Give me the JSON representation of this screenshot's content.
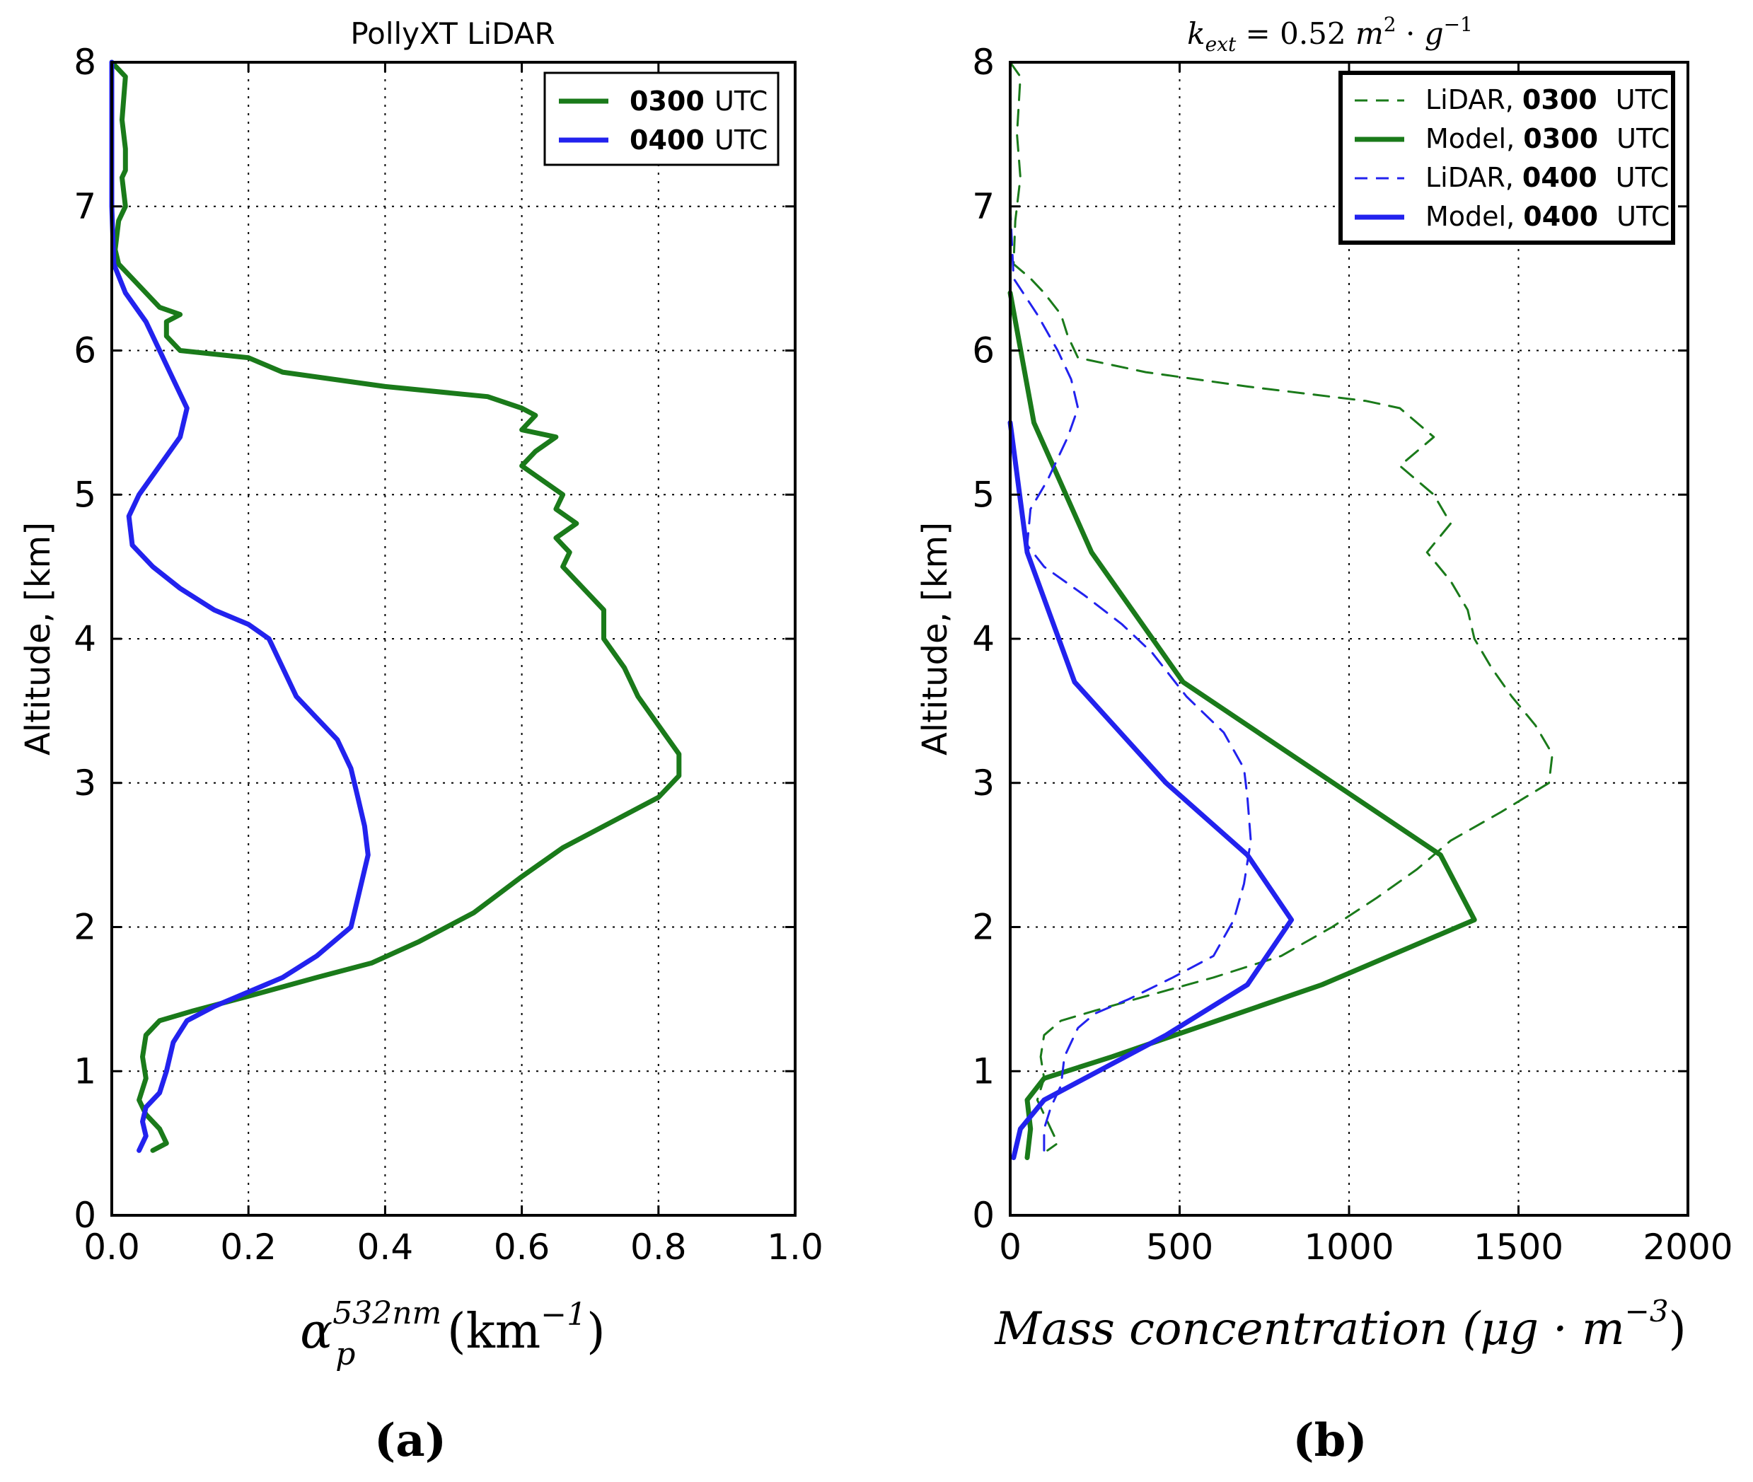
{
  "panels": {
    "a": {
      "title": "PollyXT LiDAR",
      "ylabel": "Altitude, [km]",
      "xlabel_symbol": "α",
      "xlabel_sup": "532nm",
      "xlabel_sub": "p",
      "xlabel_unit": " (km",
      "xlabel_unit_exp": "−1",
      "xlabel_close": ")",
      "caption": "(a)",
      "legend": [
        {
          "time": "0300",
          "unit": "UTC",
          "color": "#1a7a1a"
        },
        {
          "time": "0400",
          "unit": "UTC",
          "color": "#2222ee"
        }
      ]
    },
    "b": {
      "title_k": "k",
      "title_sub": "ext",
      "title_eq": " = 0.52 ",
      "title_m": "m",
      "title_m_exp": "2",
      "title_dot": " · ",
      "title_g": "g",
      "title_g_exp": "−1",
      "ylabel": "Altitude, [km]",
      "xlabel": "Mass concentration (μg · m",
      "xlabel_exp": "−3",
      "xlabel_close": ")",
      "caption": "(b)",
      "legend": [
        {
          "source": "LiDAR,",
          "time": "0300",
          "unit": "UTC",
          "color": "#1a7a1a",
          "style": "dashed"
        },
        {
          "source": "Model,",
          "time": "0300",
          "unit": "UTC",
          "color": "#1a7a1a",
          "style": "solid"
        },
        {
          "source": "LiDAR,",
          "time": "0400",
          "unit": "UTC",
          "color": "#2222ee",
          "style": "dashed"
        },
        {
          "source": "Model,",
          "time": "0400",
          "unit": "UTC",
          "color": "#2222ee",
          "style": "solid"
        }
      ]
    }
  },
  "chart_data": [
    {
      "type": "line",
      "title": "PollyXT LiDAR",
      "xlabel": "α_p^532nm (km^-1)",
      "ylabel": "Altitude, [km]",
      "xlim": [
        0.0,
        1.0
      ],
      "ylim": [
        0,
        8
      ],
      "xticks": [
        "0.0",
        "0.2",
        "0.4",
        "0.6",
        "0.8",
        "1.0"
      ],
      "yticks": [
        "0",
        "1",
        "2",
        "3",
        "4",
        "5",
        "6",
        "7",
        "8"
      ],
      "grid": true,
      "legend_position": "top-right",
      "series": [
        {
          "name": "0300 UTC",
          "color": "#1a7a1a",
          "style": "solid",
          "points": [
            [
              0.0,
              8.0
            ],
            [
              0.02,
              7.9
            ],
            [
              0.015,
              7.6
            ],
            [
              0.02,
              7.4
            ],
            [
              0.02,
              7.25
            ],
            [
              0.015,
              7.2
            ],
            [
              0.02,
              7.0
            ],
            [
              0.01,
              6.9
            ],
            [
              0.005,
              6.7
            ],
            [
              0.01,
              6.6
            ],
            [
              0.03,
              6.5
            ],
            [
              0.05,
              6.4
            ],
            [
              0.07,
              6.3
            ],
            [
              0.1,
              6.25
            ],
            [
              0.08,
              6.2
            ],
            [
              0.08,
              6.1
            ],
            [
              0.1,
              6.0
            ],
            [
              0.2,
              5.95
            ],
            [
              0.25,
              5.85
            ],
            [
              0.4,
              5.75
            ],
            [
              0.55,
              5.68
            ],
            [
              0.6,
              5.6
            ],
            [
              0.62,
              5.55
            ],
            [
              0.6,
              5.45
            ],
            [
              0.65,
              5.4
            ],
            [
              0.62,
              5.3
            ],
            [
              0.6,
              5.2
            ],
            [
              0.63,
              5.1
            ],
            [
              0.66,
              5.0
            ],
            [
              0.65,
              4.9
            ],
            [
              0.68,
              4.8
            ],
            [
              0.65,
              4.7
            ],
            [
              0.67,
              4.6
            ],
            [
              0.66,
              4.5
            ],
            [
              0.68,
              4.4
            ],
            [
              0.7,
              4.3
            ],
            [
              0.72,
              4.2
            ],
            [
              0.72,
              4.0
            ],
            [
              0.75,
              3.8
            ],
            [
              0.77,
              3.6
            ],
            [
              0.8,
              3.4
            ],
            [
              0.83,
              3.2
            ],
            [
              0.83,
              3.05
            ],
            [
              0.8,
              2.9
            ],
            [
              0.74,
              2.75
            ],
            [
              0.66,
              2.55
            ],
            [
              0.6,
              2.35
            ],
            [
              0.53,
              2.1
            ],
            [
              0.45,
              1.9
            ],
            [
              0.38,
              1.75
            ],
            [
              0.3,
              1.65
            ],
            [
              0.2,
              1.52
            ],
            [
              0.12,
              1.42
            ],
            [
              0.07,
              1.35
            ],
            [
              0.05,
              1.25
            ],
            [
              0.045,
              1.1
            ],
            [
              0.05,
              0.95
            ],
            [
              0.04,
              0.8
            ],
            [
              0.05,
              0.7
            ],
            [
              0.07,
              0.6
            ],
            [
              0.08,
              0.5
            ],
            [
              0.06,
              0.45
            ]
          ]
        },
        {
          "name": "0400 UTC",
          "color": "#2222ee",
          "style": "solid",
          "points": [
            [
              0.0,
              8.0
            ],
            [
              0.0,
              7.0
            ],
            [
              0.003,
              6.6
            ],
            [
              0.02,
              6.4
            ],
            [
              0.05,
              6.2
            ],
            [
              0.07,
              6.0
            ],
            [
              0.09,
              5.8
            ],
            [
              0.11,
              5.6
            ],
            [
              0.1,
              5.4
            ],
            [
              0.07,
              5.2
            ],
            [
              0.04,
              5.0
            ],
            [
              0.025,
              4.85
            ],
            [
              0.03,
              4.65
            ],
            [
              0.06,
              4.5
            ],
            [
              0.1,
              4.35
            ],
            [
              0.15,
              4.2
            ],
            [
              0.2,
              4.1
            ],
            [
              0.23,
              4.0
            ],
            [
              0.25,
              3.8
            ],
            [
              0.27,
              3.6
            ],
            [
              0.3,
              3.45
            ],
            [
              0.33,
              3.3
            ],
            [
              0.35,
              3.1
            ],
            [
              0.36,
              2.9
            ],
            [
              0.37,
              2.7
            ],
            [
              0.375,
              2.5
            ],
            [
              0.36,
              2.2
            ],
            [
              0.35,
              2.0
            ],
            [
              0.3,
              1.8
            ],
            [
              0.25,
              1.65
            ],
            [
              0.2,
              1.55
            ],
            [
              0.15,
              1.45
            ],
            [
              0.11,
              1.35
            ],
            [
              0.09,
              1.2
            ],
            [
              0.08,
              1.0
            ],
            [
              0.07,
              0.85
            ],
            [
              0.05,
              0.75
            ],
            [
              0.045,
              0.65
            ],
            [
              0.05,
              0.55
            ],
            [
              0.04,
              0.45
            ]
          ]
        }
      ]
    },
    {
      "type": "line",
      "title": "k_ext = 0.52 m^2 · g^-1",
      "xlabel": "Mass concentration (μg · m^-3)",
      "ylabel": "Altitude, [km]",
      "xlim": [
        0,
        2000
      ],
      "ylim": [
        0,
        8
      ],
      "xticks": [
        "0",
        "500",
        "1000",
        "1500",
        "2000"
      ],
      "yticks": [
        "0",
        "1",
        "2",
        "3",
        "4",
        "5",
        "6",
        "7",
        "8"
      ],
      "grid": true,
      "legend_position": "top-right",
      "series": [
        {
          "name": "LiDAR, 0300 UTC",
          "color": "#1a7a1a",
          "style": "dashed",
          "points": [
            [
              0,
              8.0
            ],
            [
              30,
              7.9
            ],
            [
              20,
              7.5
            ],
            [
              30,
              7.2
            ],
            [
              15,
              6.9
            ],
            [
              10,
              6.6
            ],
            [
              60,
              6.5
            ],
            [
              100,
              6.4
            ],
            [
              150,
              6.25
            ],
            [
              170,
              6.1
            ],
            [
              200,
              5.95
            ],
            [
              400,
              5.85
            ],
            [
              700,
              5.75
            ],
            [
              1050,
              5.65
            ],
            [
              1150,
              5.6
            ],
            [
              1200,
              5.5
            ],
            [
              1250,
              5.4
            ],
            [
              1150,
              5.2
            ],
            [
              1250,
              5.0
            ],
            [
              1300,
              4.8
            ],
            [
              1230,
              4.6
            ],
            [
              1300,
              4.4
            ],
            [
              1350,
              4.2
            ],
            [
              1370,
              4.0
            ],
            [
              1420,
              3.8
            ],
            [
              1480,
              3.6
            ],
            [
              1550,
              3.4
            ],
            [
              1600,
              3.2
            ],
            [
              1590,
              3.0
            ],
            [
              1450,
              2.8
            ],
            [
              1300,
              2.6
            ],
            [
              1200,
              2.4
            ],
            [
              1080,
              2.2
            ],
            [
              950,
              2.0
            ],
            [
              800,
              1.8
            ],
            [
              600,
              1.65
            ],
            [
              400,
              1.52
            ],
            [
              250,
              1.42
            ],
            [
              150,
              1.35
            ],
            [
              100,
              1.25
            ],
            [
              90,
              1.1
            ],
            [
              100,
              0.95
            ],
            [
              80,
              0.8
            ],
            [
              100,
              0.7
            ],
            [
              120,
              0.6
            ],
            [
              140,
              0.5
            ],
            [
              110,
              0.45
            ]
          ]
        },
        {
          "name": "Model, 0300 UTC",
          "color": "#1a7a1a",
          "style": "solid",
          "points": [
            [
              0,
              6.4
            ],
            [
              70,
              5.5
            ],
            [
              240,
              4.6
            ],
            [
              510,
              3.7
            ],
            [
              1270,
              2.5
            ],
            [
              1370,
              2.05
            ],
            [
              920,
              1.6
            ],
            [
              300,
              1.1
            ],
            [
              100,
              0.95
            ],
            [
              50,
              0.8
            ],
            [
              60,
              0.6
            ],
            [
              50,
              0.4
            ]
          ]
        },
        {
          "name": "LiDAR, 0400 UTC",
          "color": "#2222ee",
          "style": "dashed",
          "points": [
            [
              0,
              7.9
            ],
            [
              0,
              7.0
            ],
            [
              10,
              6.5
            ],
            [
              80,
              6.25
            ],
            [
              140,
              6.0
            ],
            [
              180,
              5.8
            ],
            [
              200,
              5.6
            ],
            [
              170,
              5.4
            ],
            [
              110,
              5.1
            ],
            [
              60,
              4.9
            ],
            [
              50,
              4.65
            ],
            [
              100,
              4.5
            ],
            [
              220,
              4.3
            ],
            [
              330,
              4.1
            ],
            [
              420,
              3.9
            ],
            [
              520,
              3.6
            ],
            [
              630,
              3.35
            ],
            [
              690,
              3.1
            ],
            [
              700,
              2.9
            ],
            [
              710,
              2.6
            ],
            [
              690,
              2.3
            ],
            [
              660,
              2.05
            ],
            [
              600,
              1.8
            ],
            [
              480,
              1.65
            ],
            [
              350,
              1.5
            ],
            [
              250,
              1.4
            ],
            [
              200,
              1.3
            ],
            [
              160,
              1.1
            ],
            [
              150,
              0.9
            ],
            [
              120,
              0.75
            ],
            [
              100,
              0.6
            ],
            [
              100,
              0.45
            ]
          ]
        },
        {
          "name": "Model, 0400 UTC",
          "color": "#2222ee",
          "style": "solid",
          "points": [
            [
              0,
              5.5
            ],
            [
              50,
              4.6
            ],
            [
              190,
              3.7
            ],
            [
              460,
              3.0
            ],
            [
              700,
              2.5
            ],
            [
              830,
              2.05
            ],
            [
              700,
              1.6
            ],
            [
              460,
              1.25
            ],
            [
              100,
              0.8
            ],
            [
              30,
              0.6
            ],
            [
              10,
              0.4
            ]
          ]
        }
      ]
    }
  ]
}
